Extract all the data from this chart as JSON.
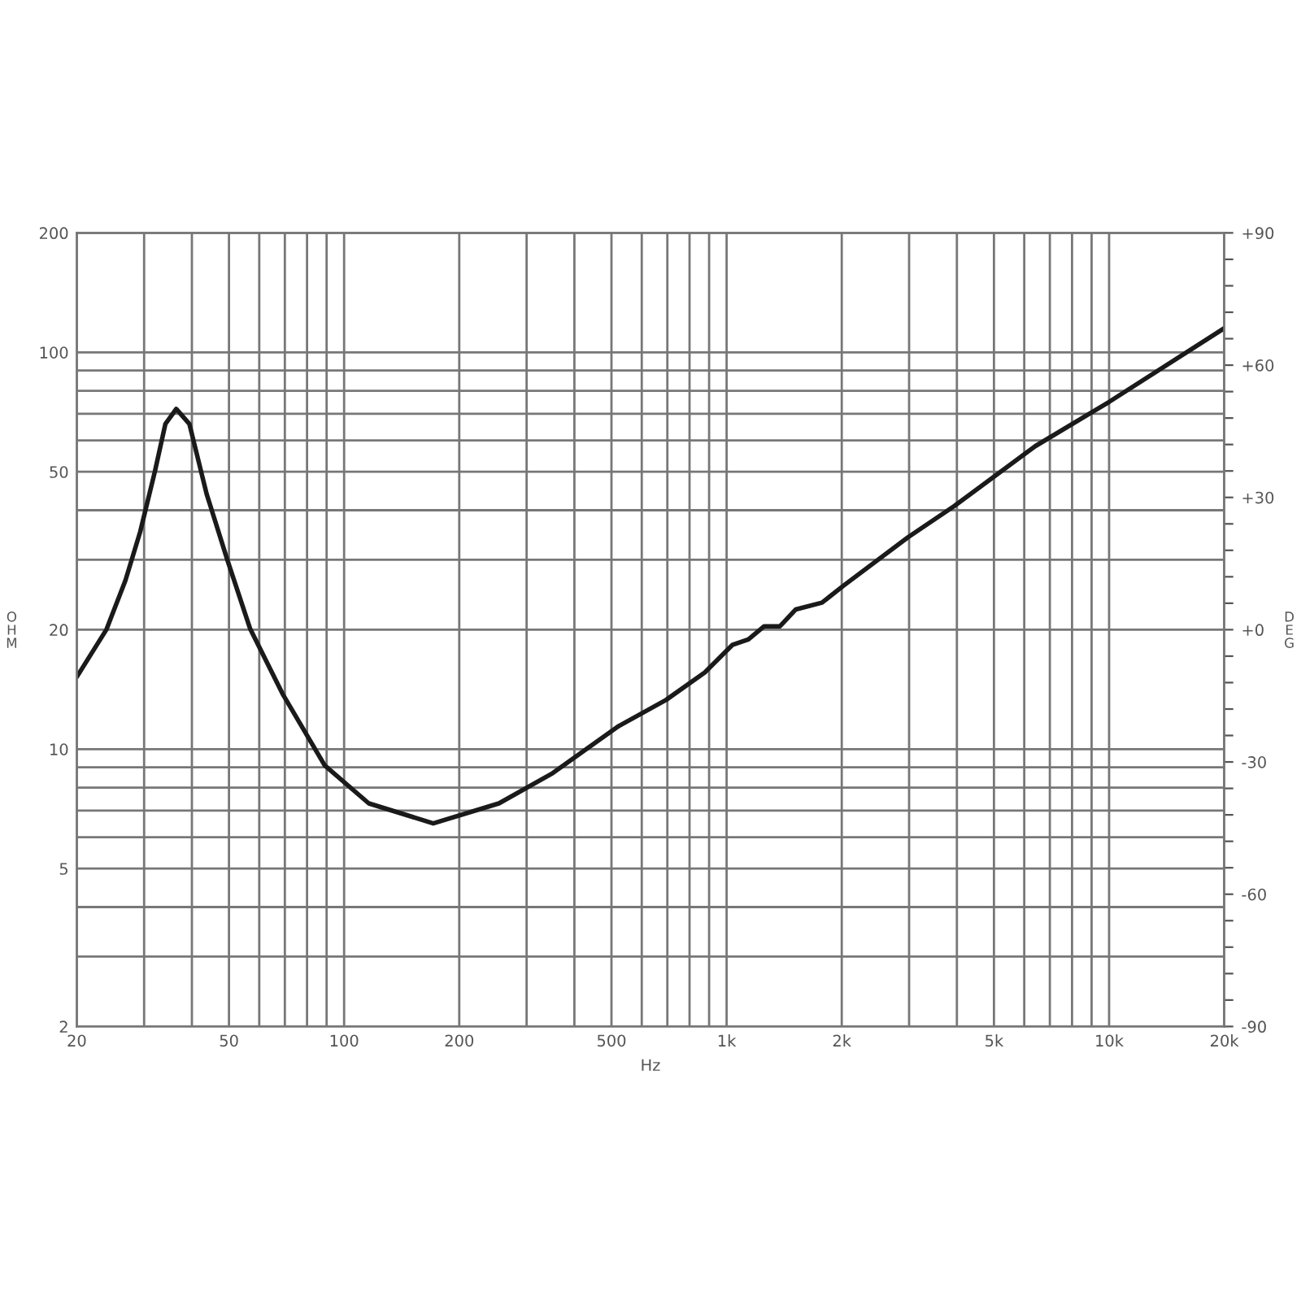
{
  "chart_data": {
    "type": "line",
    "xlabel": "Hz",
    "ylabel": "OHM",
    "y2label": "DEG",
    "log": "xy",
    "grid": true,
    "marker": "none",
    "line_style": "solid",
    "series": [
      {
        "color": "#1a1a1a",
        "x": [
          20,
          23.9,
          26.8,
          29.3,
          32.0,
          34.1,
          36.4,
          39.4,
          43.7,
          49.4,
          56.8,
          69,
          89,
          116,
          171,
          254,
          351,
          520,
          694,
          877,
          1035,
          1140,
          1254,
          1379,
          1517,
          1776,
          2020,
          2980,
          3940,
          6410,
          10000,
          20000
        ],
        "values": [
          15.2,
          20,
          26.6,
          35.3,
          50,
          66,
          72,
          66,
          44,
          30.2,
          20.1,
          13.8,
          9.1,
          7.3,
          6.5,
          7.3,
          8.7,
          11.4,
          13.3,
          15.6,
          18.3,
          18.9,
          20.4,
          20.4,
          22.5,
          23.4,
          25.8,
          34.2,
          41,
          58,
          75,
          115
        ]
      }
    ],
    "xlim": [
      20,
      20000
    ],
    "xticks": [
      20,
      {
        "value": 30,
        "label": null
      },
      {
        "value": 40,
        "label": null
      },
      50,
      {
        "value": 60,
        "label": null
      },
      {
        "value": 70,
        "label": null
      },
      {
        "value": 80,
        "label": null
      },
      {
        "value": 90,
        "label": null
      },
      100,
      200,
      {
        "value": 300,
        "label": null
      },
      {
        "value": 400,
        "label": null
      },
      500,
      {
        "value": 600,
        "label": null
      },
      {
        "value": 700,
        "label": null
      },
      {
        "value": 800,
        "label": null
      },
      {
        "value": 900,
        "label": null
      },
      {
        "value": 1000,
        "label": "1k"
      },
      {
        "value": 2000,
        "label": "2k"
      },
      {
        "value": 3000,
        "label": null
      },
      {
        "value": 4000,
        "label": null
      },
      {
        "value": 5000,
        "label": "5k"
      },
      {
        "value": 6000,
        "label": null
      },
      {
        "value": 7000,
        "label": null
      },
      {
        "value": 8000,
        "label": null
      },
      {
        "value": 9000,
        "label": null
      },
      {
        "value": 10000,
        "label": "10k"
      },
      {
        "value": 20000,
        "label": "20k"
      }
    ],
    "ylim": [
      2,
      200
    ],
    "yticks": [
      2,
      {
        "value": 3,
        "label": null
      },
      {
        "value": 4,
        "label": null
      },
      5,
      {
        "value": 6,
        "label": null
      },
      {
        "value": 7,
        "label": null
      },
      {
        "value": 8,
        "label": null
      },
      {
        "value": 9,
        "label": null
      },
      10,
      20,
      {
        "value": 30,
        "label": null
      },
      {
        "value": 40,
        "label": null
      },
      50,
      {
        "value": 60,
        "label": null
      },
      {
        "value": 70,
        "label": null
      },
      {
        "value": 80,
        "label": null
      },
      {
        "value": 90,
        "label": null
      },
      100,
      200
    ],
    "y2lim": [
      -90,
      90
    ],
    "y2ticks": [
      {
        "value": -90,
        "label": "-90"
      },
      {
        "value": -84,
        "label": null
      },
      {
        "value": -78,
        "label": null
      },
      {
        "value": -72,
        "label": null
      },
      {
        "value": -66,
        "label": null
      },
      {
        "value": -60,
        "label": "-60"
      },
      {
        "value": -54,
        "label": null
      },
      {
        "value": -48,
        "label": null
      },
      {
        "value": -42,
        "label": null
      },
      {
        "value": -36,
        "label": null
      },
      {
        "value": -30,
        "label": "-30"
      },
      {
        "value": -24,
        "label": null
      },
      {
        "value": -18,
        "label": null
      },
      {
        "value": -12,
        "label": null
      },
      {
        "value": -6,
        "label": null
      },
      {
        "value": 0,
        "label": "+0"
      },
      {
        "value": 6,
        "label": null
      },
      {
        "value": 12,
        "label": null
      },
      {
        "value": 18,
        "label": null
      },
      {
        "value": 24,
        "label": null
      },
      {
        "value": 30,
        "label": "+30"
      },
      {
        "value": 36,
        "label": null
      },
      {
        "value": 42,
        "label": null
      },
      {
        "value": 48,
        "label": null
      },
      {
        "value": 54,
        "label": null
      },
      {
        "value": 60,
        "label": "+60"
      },
      {
        "value": 66,
        "label": null
      },
      {
        "value": 72,
        "label": null
      },
      {
        "value": 78,
        "label": null
      },
      {
        "value": 84,
        "label": null
      },
      {
        "value": 90,
        "label": "+90"
      }
    ]
  }
}
